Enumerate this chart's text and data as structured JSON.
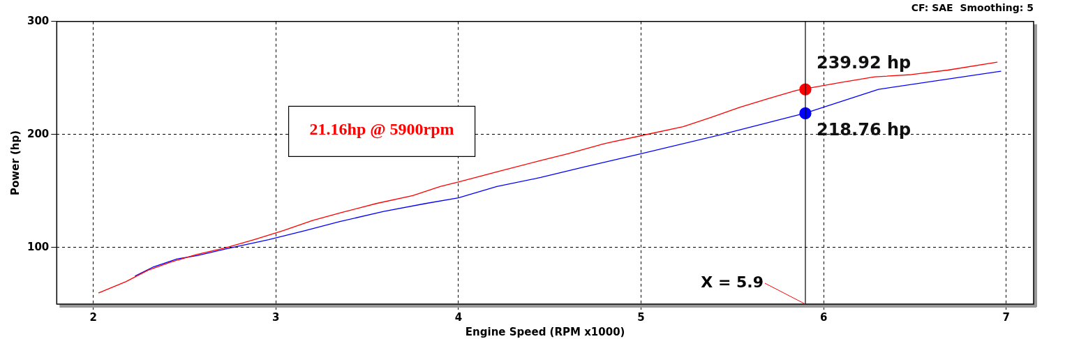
{
  "chart_data": {
    "type": "line",
    "subtitle": "CF: SAE  Smoothing: 5",
    "xlabel": "Engine Speed (RPM x1000)",
    "ylabel": "Power (hp)",
    "xlim": [
      1.8,
      7.15
    ],
    "ylim": [
      50,
      300
    ],
    "xticks": [
      2,
      3,
      4,
      5,
      6,
      7
    ],
    "yticks": [
      100,
      200,
      300
    ],
    "grid": true,
    "legend": false,
    "line_style": "solid",
    "series": [
      {
        "color": "#ff0000",
        "x": [
          2.03,
          2.18,
          2.3,
          2.42,
          2.57,
          2.73,
          2.88,
          3.04,
          3.2,
          3.36,
          3.55,
          3.75,
          3.9,
          4.0,
          4.21,
          4.45,
          4.6,
          4.8,
          5.0,
          5.23,
          5.38,
          5.54,
          5.7,
          5.85,
          6.09,
          6.28,
          6.48,
          6.68,
          6.95
        ],
        "values": [
          60,
          70,
          80,
          87,
          94,
          100,
          107,
          115,
          124,
          131,
          139,
          146,
          154,
          158,
          167,
          177,
          183,
          192,
          199,
          207,
          215,
          224,
          232,
          239,
          246,
          251,
          253,
          257,
          264
        ]
      },
      {
        "color": "#0000ff",
        "x": [
          2.23,
          2.33,
          2.46,
          2.57,
          2.73,
          2.96,
          3.16,
          3.35,
          3.59,
          3.82,
          4.0,
          4.21,
          4.45,
          4.68,
          5.0,
          5.44,
          5.9,
          6.3,
          6.97
        ],
        "values": [
          75,
          83,
          90,
          93,
          99,
          107,
          115,
          123,
          132,
          139,
          144,
          154,
          162,
          171,
          183,
          200,
          219,
          240,
          256
        ]
      },
      {
        "type": "scatter",
        "marker": "circle",
        "color": "#ff0000",
        "x": [
          5.9
        ],
        "values": [
          239.92
        ]
      },
      {
        "type": "scatter",
        "marker": "circle",
        "color": "#0000ff",
        "x": [
          5.9
        ],
        "values": [
          218.76
        ]
      }
    ],
    "ref_lines": [
      {
        "axis": "x",
        "value": 5.9,
        "label": "X = 5.9",
        "color": "#000000"
      }
    ],
    "annotations": [
      "21.16hp @ 5900rpm",
      {
        "text": "239.92 hp",
        "x": 5.9,
        "y": 239.92
      },
      {
        "text": "218.76 hp",
        "x": 5.9,
        "y": 218.76
      }
    ]
  }
}
